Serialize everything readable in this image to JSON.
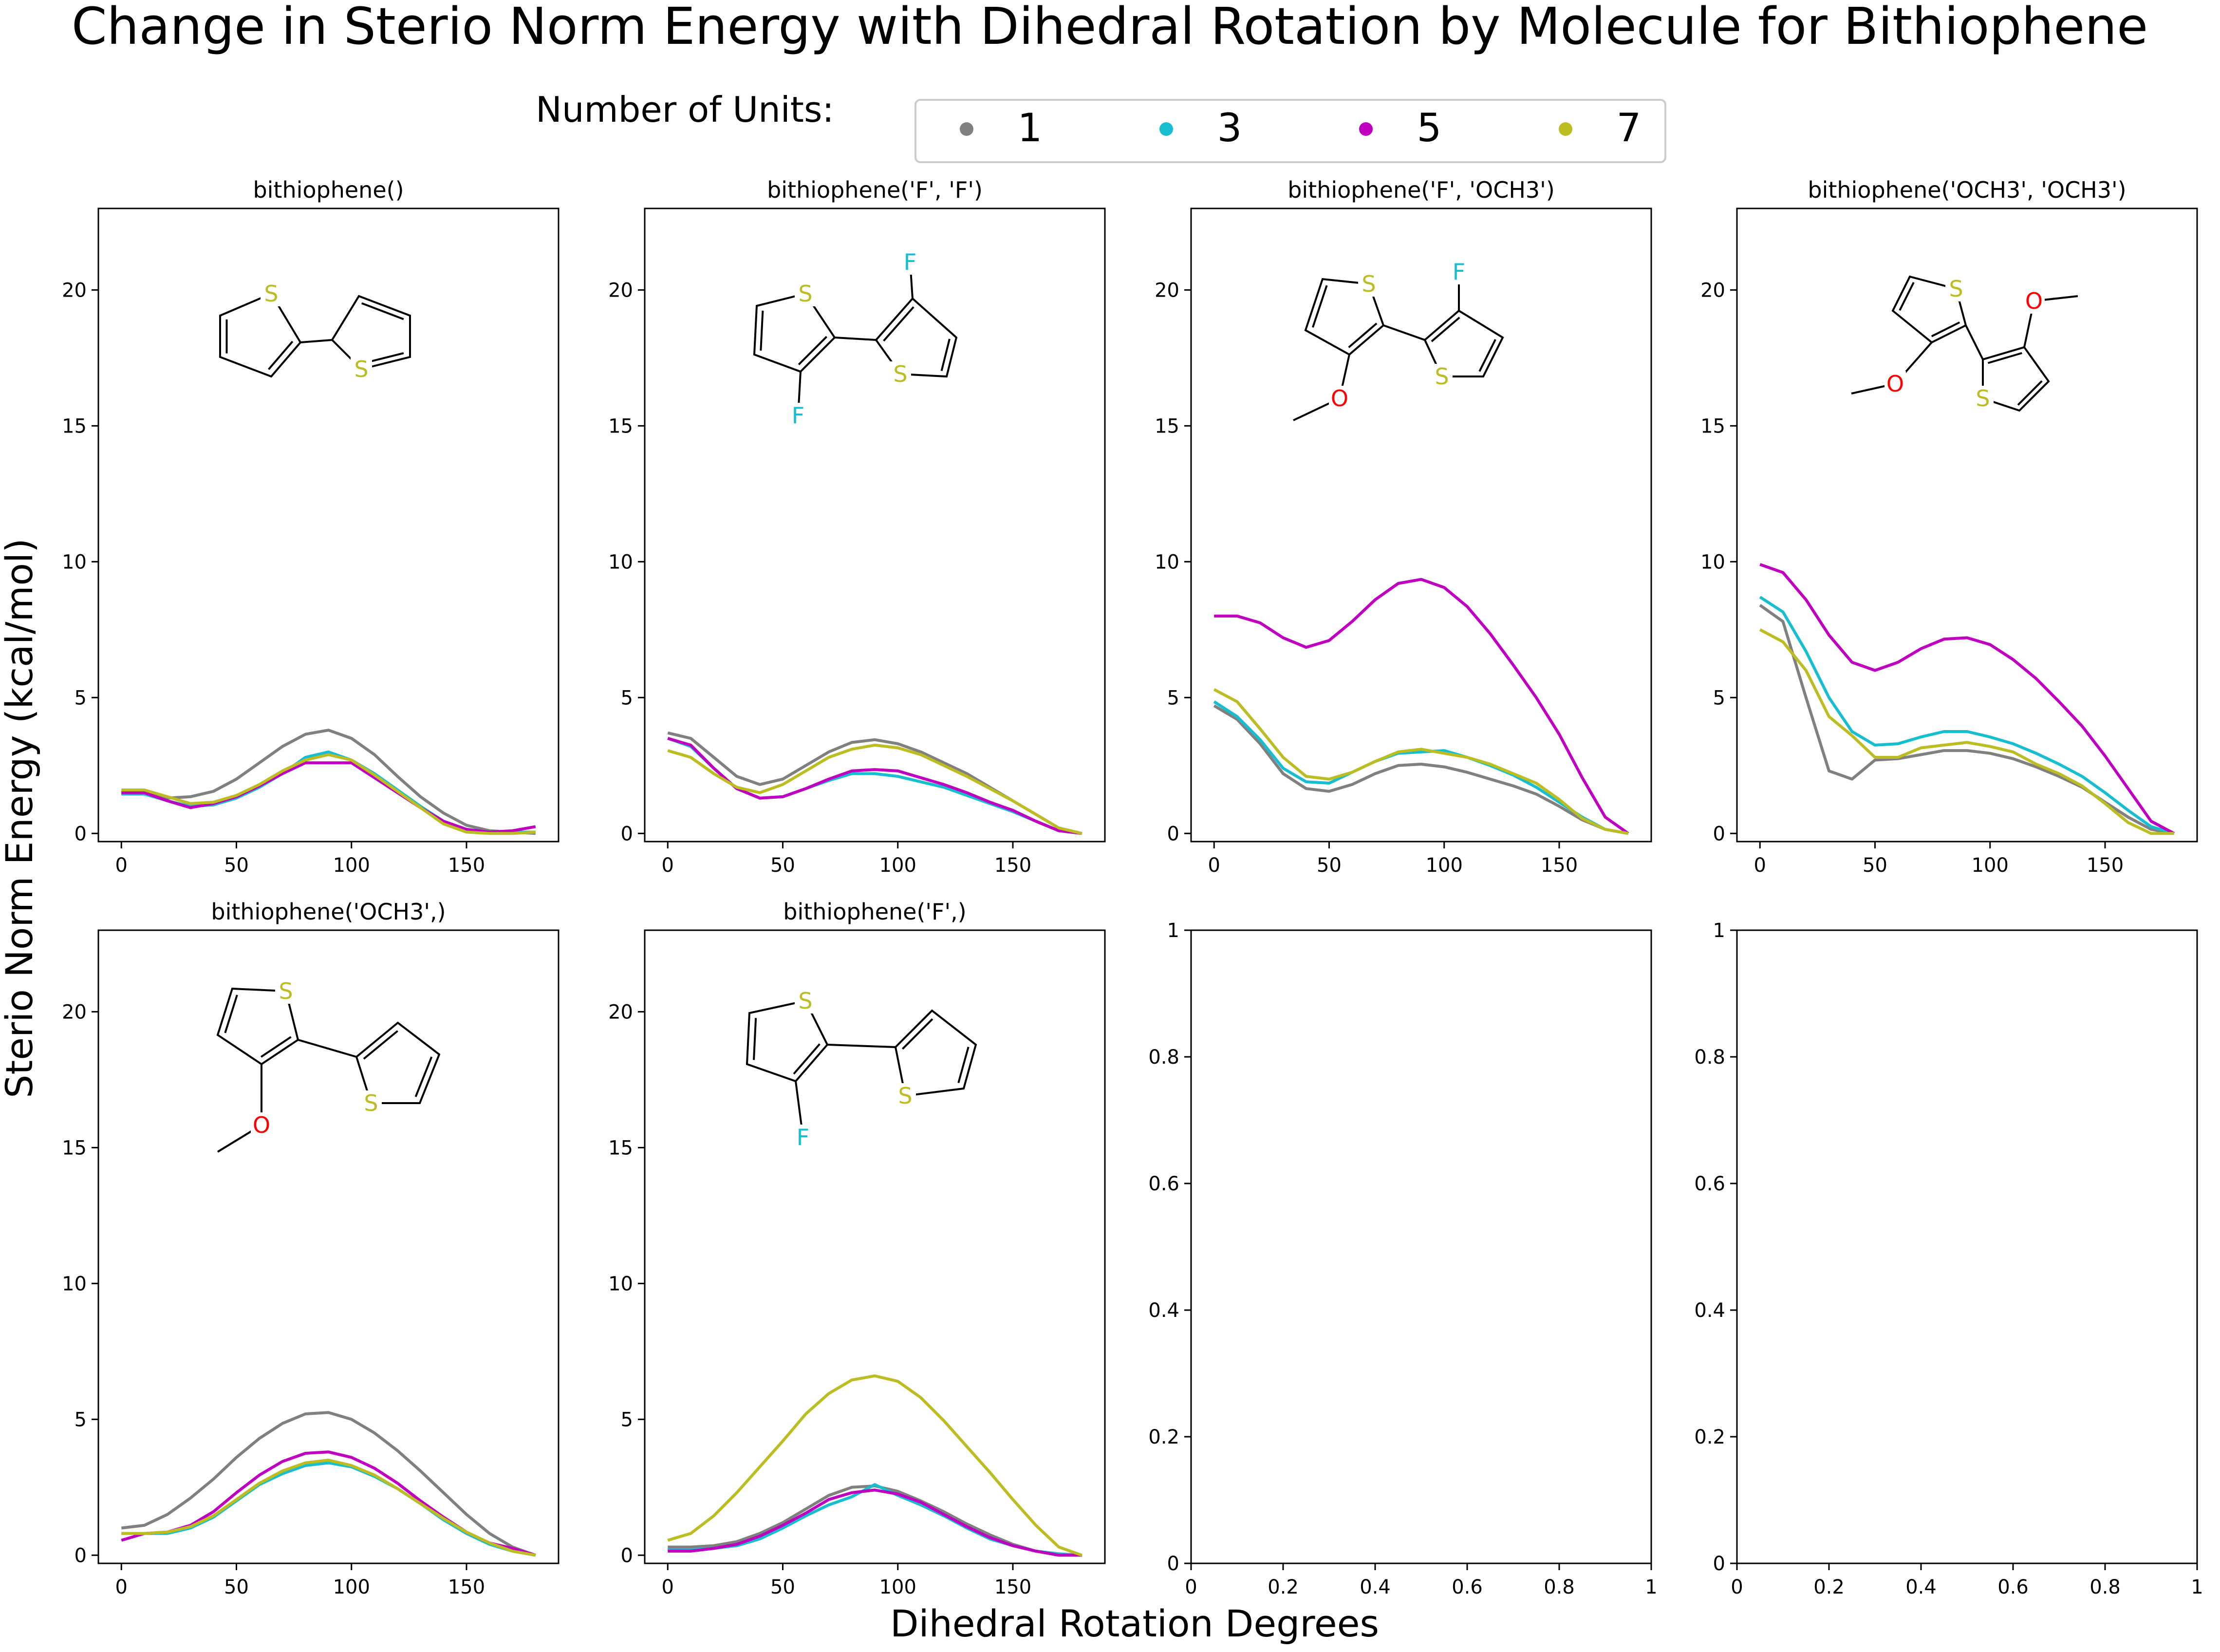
{
  "figure": {
    "title": "Change in Sterio Norm Energy with Dihedral Rotation by Molecule for Bithiophene",
    "xlabel": "Dihedral Rotation Degrees",
    "ylabel": "Sterio Norm Energy (kcal/mol)",
    "legend": {
      "title": "Number of Units:",
      "placement": "top-center",
      "entries": [
        {
          "label": "1",
          "color": "#808080"
        },
        {
          "label": "3",
          "color": "#17becf"
        },
        {
          "label": "5",
          "color": "#c000c0"
        },
        {
          "label": "7",
          "color": "#bcbd22"
        }
      ]
    }
  },
  "chart_data": [
    {
      "type": "line",
      "title": "bithiophene()",
      "xlim": [
        -10,
        190
      ],
      "ylim": [
        -0.3,
        23
      ],
      "xticks": [
        0,
        50,
        100,
        150
      ],
      "yticks": [
        0,
        5,
        10,
        15,
        20
      ],
      "x": [
        0,
        10,
        20,
        30,
        40,
        50,
        60,
        70,
        80,
        90,
        100,
        110,
        120,
        130,
        140,
        150,
        160,
        170,
        180
      ],
      "series": [
        {
          "name": "1",
          "color": "#808080",
          "values": [
            1.5,
            1.5,
            1.3,
            1.35,
            1.55,
            2.0,
            2.6,
            3.2,
            3.65,
            3.8,
            3.5,
            2.9,
            2.1,
            1.35,
            0.75,
            0.3,
            0.1,
            0.05,
            0.0
          ]
        },
        {
          "name": "3",
          "color": "#17becf",
          "values": [
            1.45,
            1.45,
            1.2,
            1.0,
            1.05,
            1.3,
            1.7,
            2.2,
            2.8,
            3.0,
            2.7,
            2.2,
            1.6,
            1.0,
            0.45,
            0.15,
            0.05,
            0.05,
            0.05
          ]
        },
        {
          "name": "5",
          "color": "#c000c0",
          "values": [
            1.5,
            1.5,
            1.2,
            0.95,
            1.1,
            1.35,
            1.75,
            2.2,
            2.6,
            2.6,
            2.6,
            2.05,
            1.5,
            0.95,
            0.45,
            0.15,
            0.05,
            0.1,
            0.25
          ]
        },
        {
          "name": "7",
          "color": "#bcbd22",
          "values": [
            1.6,
            1.6,
            1.35,
            1.1,
            1.15,
            1.4,
            1.8,
            2.3,
            2.7,
            2.9,
            2.7,
            2.15,
            1.55,
            0.95,
            0.35,
            0.05,
            0.0,
            0.0,
            0.05
          ]
        }
      ]
    },
    {
      "type": "line",
      "title": "bithiophene('F', 'F')",
      "xlim": [
        -10,
        190
      ],
      "ylim": [
        -0.3,
        23
      ],
      "xticks": [
        0,
        50,
        100,
        150
      ],
      "yticks": [
        0,
        5,
        10,
        15,
        20
      ],
      "x": [
        0,
        10,
        20,
        30,
        40,
        50,
        60,
        70,
        80,
        90,
        100,
        110,
        120,
        130,
        140,
        150,
        160,
        170,
        180
      ],
      "series": [
        {
          "name": "1",
          "color": "#808080",
          "values": [
            3.7,
            3.5,
            2.8,
            2.1,
            1.8,
            2.0,
            2.5,
            3.0,
            3.35,
            3.45,
            3.3,
            3.0,
            2.6,
            2.2,
            1.7,
            1.2,
            0.7,
            0.2,
            0.0
          ]
        },
        {
          "name": "3",
          "color": "#17becf",
          "values": [
            3.5,
            3.2,
            2.4,
            1.65,
            1.3,
            1.35,
            1.65,
            1.95,
            2.2,
            2.2,
            2.1,
            1.9,
            1.7,
            1.4,
            1.1,
            0.8,
            0.45,
            0.1,
            0.0
          ]
        },
        {
          "name": "5",
          "color": "#c000c0",
          "values": [
            3.5,
            3.25,
            2.4,
            1.65,
            1.3,
            1.35,
            1.65,
            2.0,
            2.3,
            2.35,
            2.3,
            2.05,
            1.8,
            1.5,
            1.15,
            0.85,
            0.45,
            0.1,
            0.0
          ]
        },
        {
          "name": "7",
          "color": "#bcbd22",
          "values": [
            3.05,
            2.8,
            2.2,
            1.7,
            1.5,
            1.8,
            2.3,
            2.8,
            3.1,
            3.25,
            3.15,
            2.9,
            2.5,
            2.1,
            1.65,
            1.2,
            0.7,
            0.2,
            0.0
          ]
        }
      ]
    },
    {
      "type": "line",
      "title": "bithiophene('F', 'OCH3')",
      "xlim": [
        -10,
        190
      ],
      "ylim": [
        -0.3,
        23
      ],
      "xticks": [
        0,
        50,
        100,
        150
      ],
      "yticks": [
        0,
        5,
        10,
        15,
        20
      ],
      "x": [
        0,
        10,
        20,
        30,
        40,
        50,
        60,
        70,
        80,
        90,
        100,
        110,
        120,
        130,
        140,
        150,
        160,
        170,
        180
      ],
      "series": [
        {
          "name": "1",
          "color": "#808080",
          "values": [
            4.7,
            4.2,
            3.3,
            2.2,
            1.65,
            1.55,
            1.8,
            2.2,
            2.5,
            2.55,
            2.45,
            2.25,
            2.0,
            1.75,
            1.45,
            1.0,
            0.5,
            0.15,
            0.0
          ]
        },
        {
          "name": "3",
          "color": "#17becf",
          "values": [
            4.85,
            4.3,
            3.45,
            2.4,
            1.9,
            1.85,
            2.25,
            2.65,
            2.95,
            3.0,
            3.05,
            2.8,
            2.5,
            2.15,
            1.7,
            1.15,
            0.6,
            0.15,
            0.0
          ]
        },
        {
          "name": "5",
          "color": "#c000c0",
          "values": [
            8.0,
            8.0,
            7.75,
            7.2,
            6.85,
            7.1,
            7.8,
            8.6,
            9.2,
            9.35,
            9.05,
            8.35,
            7.35,
            6.2,
            5.0,
            3.65,
            2.05,
            0.6,
            0.0
          ]
        },
        {
          "name": "7",
          "color": "#bcbd22",
          "values": [
            5.3,
            4.85,
            3.85,
            2.8,
            2.1,
            2.0,
            2.25,
            2.65,
            3.0,
            3.1,
            2.95,
            2.8,
            2.55,
            2.2,
            1.85,
            1.25,
            0.55,
            0.15,
            0.0
          ]
        }
      ]
    },
    {
      "type": "line",
      "title": "bithiophene('OCH3', 'OCH3')",
      "xlim": [
        -10,
        190
      ],
      "ylim": [
        -0.3,
        23
      ],
      "xticks": [
        0,
        50,
        100,
        150
      ],
      "yticks": [
        0,
        5,
        10,
        15,
        20
      ],
      "x": [
        0,
        10,
        20,
        30,
        40,
        50,
        60,
        70,
        80,
        90,
        100,
        110,
        120,
        130,
        140,
        150,
        160,
        170,
        180
      ],
      "series": [
        {
          "name": "1",
          "color": "#808080",
          "values": [
            8.4,
            7.8,
            5.0,
            2.3,
            2.0,
            2.7,
            2.75,
            2.9,
            3.05,
            3.05,
            2.95,
            2.75,
            2.45,
            2.1,
            1.7,
            1.15,
            0.6,
            0.15,
            0.0
          ]
        },
        {
          "name": "3",
          "color": "#17becf",
          "values": [
            8.7,
            8.15,
            6.7,
            5.0,
            3.75,
            3.25,
            3.3,
            3.55,
            3.75,
            3.75,
            3.55,
            3.3,
            2.95,
            2.55,
            2.1,
            1.5,
            0.85,
            0.25,
            0.0
          ]
        },
        {
          "name": "5",
          "color": "#c000c0",
          "values": [
            9.9,
            9.6,
            8.6,
            7.3,
            6.3,
            6.0,
            6.3,
            6.8,
            7.15,
            7.2,
            6.95,
            6.4,
            5.7,
            4.85,
            3.95,
            2.85,
            1.65,
            0.45,
            0.0
          ]
        },
        {
          "name": "7",
          "color": "#bcbd22",
          "values": [
            7.5,
            7.05,
            6.0,
            4.3,
            3.6,
            2.8,
            2.8,
            3.15,
            3.25,
            3.35,
            3.2,
            3.0,
            2.55,
            2.2,
            1.75,
            1.1,
            0.4,
            0.0,
            0.0
          ]
        }
      ]
    },
    {
      "type": "line",
      "title": "bithiophene('OCH3',)",
      "xlim": [
        -10,
        190
      ],
      "ylim": [
        -0.3,
        23
      ],
      "xticks": [
        0,
        50,
        100,
        150
      ],
      "yticks": [
        0,
        5,
        10,
        15,
        20
      ],
      "x": [
        0,
        10,
        20,
        30,
        40,
        50,
        60,
        70,
        80,
        90,
        100,
        110,
        120,
        130,
        140,
        150,
        160,
        170,
        180
      ],
      "series": [
        {
          "name": "1",
          "color": "#808080",
          "values": [
            1.0,
            1.1,
            1.5,
            2.1,
            2.8,
            3.6,
            4.3,
            4.85,
            5.2,
            5.25,
            5.0,
            4.5,
            3.85,
            3.1,
            2.3,
            1.5,
            0.8,
            0.3,
            0.0
          ]
        },
        {
          "name": "3",
          "color": "#17becf",
          "values": [
            0.8,
            0.8,
            0.8,
            1.0,
            1.4,
            2.0,
            2.6,
            3.0,
            3.3,
            3.4,
            3.25,
            2.9,
            2.45,
            1.9,
            1.3,
            0.8,
            0.4,
            0.15,
            0.0
          ]
        },
        {
          "name": "5",
          "color": "#c000c0",
          "values": [
            0.55,
            0.8,
            0.85,
            1.1,
            1.6,
            2.3,
            2.95,
            3.45,
            3.75,
            3.8,
            3.6,
            3.2,
            2.65,
            2.0,
            1.4,
            0.85,
            0.45,
            0.25,
            0.0
          ]
        },
        {
          "name": "7",
          "color": "#bcbd22",
          "values": [
            0.8,
            0.8,
            0.85,
            1.05,
            1.45,
            2.05,
            2.65,
            3.1,
            3.4,
            3.5,
            3.3,
            2.95,
            2.45,
            1.9,
            1.35,
            0.85,
            0.45,
            0.15,
            0.0
          ]
        }
      ]
    },
    {
      "type": "line",
      "title": "bithiophene('F',)",
      "xlim": [
        -10,
        190
      ],
      "ylim": [
        -0.3,
        23
      ],
      "xticks": [
        0,
        50,
        100,
        150
      ],
      "yticks": [
        0,
        5,
        10,
        15,
        20
      ],
      "x": [
        0,
        10,
        20,
        30,
        40,
        50,
        60,
        70,
        80,
        90,
        100,
        110,
        120,
        130,
        140,
        150,
        160,
        170,
        180
      ],
      "series": [
        {
          "name": "1",
          "color": "#808080",
          "values": [
            0.3,
            0.3,
            0.35,
            0.5,
            0.8,
            1.2,
            1.7,
            2.2,
            2.5,
            2.55,
            2.35,
            2.0,
            1.6,
            1.15,
            0.75,
            0.4,
            0.15,
            0.05,
            0.0
          ]
        },
        {
          "name": "3",
          "color": "#17becf",
          "values": [
            0.2,
            0.2,
            0.25,
            0.35,
            0.6,
            1.0,
            1.45,
            1.85,
            2.15,
            2.6,
            2.2,
            1.85,
            1.45,
            1.0,
            0.6,
            0.35,
            0.15,
            0.05,
            0.0
          ]
        },
        {
          "name": "5",
          "color": "#c000c0",
          "values": [
            0.15,
            0.15,
            0.25,
            0.4,
            0.7,
            1.1,
            1.55,
            2.05,
            2.3,
            2.4,
            2.25,
            1.95,
            1.5,
            1.05,
            0.65,
            0.35,
            0.15,
            0.0,
            0.0
          ]
        },
        {
          "name": "7",
          "color": "#bcbd22",
          "values": [
            0.55,
            0.8,
            1.45,
            2.3,
            3.25,
            4.2,
            5.2,
            5.95,
            6.45,
            6.6,
            6.4,
            5.8,
            4.95,
            4.0,
            3.05,
            2.05,
            1.1,
            0.3,
            0.0
          ]
        }
      ]
    },
    {
      "type": "line",
      "title": "",
      "xlim": [
        0,
        1
      ],
      "ylim": [
        0,
        1
      ],
      "xticks": [
        0.0,
        0.2,
        0.4,
        0.6,
        0.8,
        1.0
      ],
      "yticks": [
        0.0,
        0.2,
        0.4,
        0.6,
        0.8,
        1.0
      ],
      "x": [],
      "series": []
    },
    {
      "type": "line",
      "title": "",
      "xlim": [
        0,
        1
      ],
      "ylim": [
        0,
        1
      ],
      "xticks": [
        0.0,
        0.2,
        0.4,
        0.6,
        0.8,
        1.0
      ],
      "yticks": [
        0.0,
        0.2,
        0.4,
        0.6,
        0.8,
        1.0
      ],
      "x": [],
      "series": []
    }
  ],
  "structures": [
    {
      "atoms": [
        "S",
        "S"
      ]
    },
    {
      "atoms": [
        "S",
        "S",
        "F",
        "F"
      ]
    },
    {
      "atoms": [
        "S",
        "S",
        "F",
        "O"
      ]
    },
    {
      "atoms": [
        "S",
        "S",
        "O",
        "O"
      ]
    },
    {
      "atoms": [
        "S",
        "S",
        "O"
      ]
    },
    {
      "atoms": [
        "S",
        "S",
        "F"
      ]
    },
    {
      "atoms": []
    },
    {
      "atoms": []
    }
  ],
  "atom_colors": {
    "S": "#bcbd22",
    "F": "#17becf",
    "O": "#ff0000"
  }
}
